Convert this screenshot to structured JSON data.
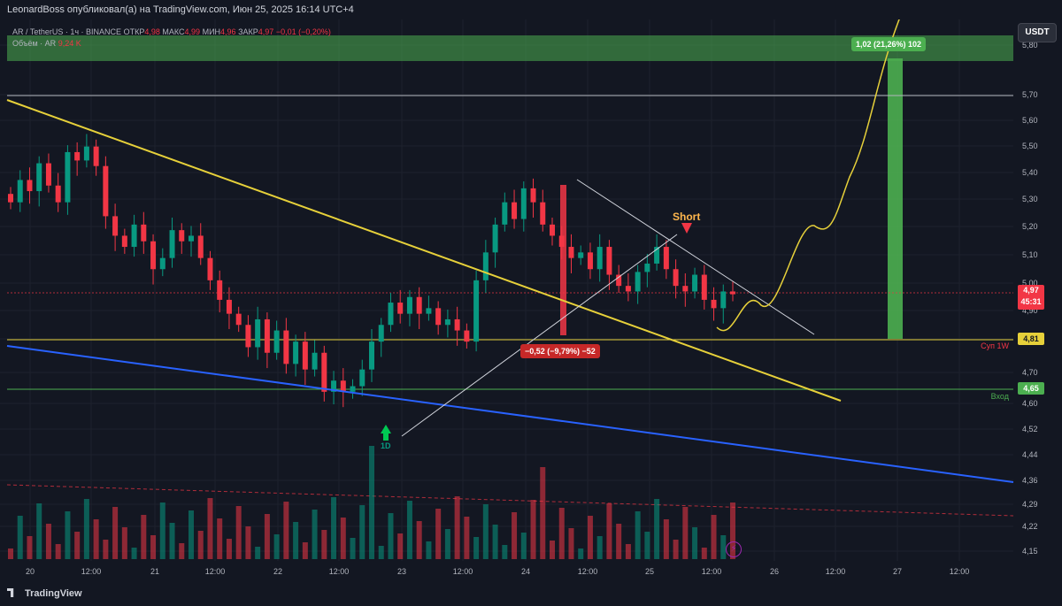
{
  "header": {
    "published": "LeonardBoss опубликовал(а) на TradingView.com, Июн 25, 2025 16:14 UTC+4"
  },
  "legend": {
    "symbol": "AR / TetherUS · 1ч · BINANCE",
    "open_label": "ОТКР",
    "open": "4,98",
    "high_label": "МАКС",
    "high": "4,99",
    "low_label": "МИН",
    "low": "4,96",
    "close_label": "ЗАКР",
    "close": "4,97",
    "change": "−0,01 (−0,20%)",
    "volume_label": "Объём · AR",
    "volume": "9,24 K"
  },
  "currency": "USDT",
  "price_axis": [
    "5,80",
    "5,70",
    "5,60",
    "5,50",
    "5,40",
    "5,30",
    "5,20",
    "5,10",
    "5,00",
    "4,90",
    "4,80",
    "4,70",
    "4,60",
    "4,52",
    "4,44",
    "4,36",
    "4,29",
    "4,22",
    "4,15"
  ],
  "time_axis": [
    "20",
    "12:00",
    "21",
    "12:00",
    "22",
    "12:00",
    "23",
    "12:00",
    "24",
    "12:00",
    "25",
    "12:00",
    "26",
    "12:00",
    "27",
    "12:00"
  ],
  "price_tags": {
    "current_price": "4,97",
    "countdown": "45:31",
    "support": "4,81",
    "support_label": "Суп 1W",
    "entry": "4,65",
    "entry_label": "Вход"
  },
  "annotations": {
    "target_measure": "1,02 (21,26%) 102",
    "drop_measure": "−0,52 (−9,79%) −52",
    "short_label": "Short",
    "d1_label": "1D",
    "flash_icon": "lightning-icon"
  },
  "footer": {
    "brand": "TradingView"
  },
  "colors": {
    "background": "#131722",
    "bull": "#089981",
    "bear": "#f23645",
    "yellow_trend": "#e6d03a",
    "blue_trend": "#2962ff",
    "target_zone": "#4caf50"
  },
  "chart_data": {
    "type": "candlestick",
    "symbol": "AR / TetherUS",
    "interval": "1h",
    "ylim": [
      4.15,
      5.85
    ],
    "x_categories": [
      "20",
      "12:00",
      "21",
      "12:00",
      "22",
      "12:00",
      "23",
      "12:00",
      "24",
      "12:00",
      "25",
      "12:00",
      "26",
      "12:00",
      "27",
      "12:00"
    ],
    "close_path": [
      5.3,
      5.38,
      5.34,
      5.44,
      5.36,
      5.3,
      5.48,
      5.45,
      5.5,
      5.43,
      5.25,
      5.18,
      5.14,
      5.22,
      5.16,
      5.06,
      5.1,
      5.2,
      5.16,
      5.18,
      5.1,
      5.02,
      4.95,
      4.9,
      4.86,
      4.78,
      4.88,
      4.76,
      4.84,
      4.72,
      4.8,
      4.7,
      4.76,
      4.62,
      4.66,
      4.62,
      4.64,
      4.7,
      4.8,
      4.86,
      4.94,
      4.9,
      4.96,
      4.9,
      4.92,
      4.86,
      4.88,
      4.84,
      4.8,
      5.02,
      5.12,
      5.22,
      5.3,
      5.24,
      5.35,
      5.3,
      5.22,
      5.18,
      5.14,
      5.1,
      5.12,
      5.06,
      5.14,
      5.04,
      5.0,
      4.98,
      5.05,
      5.08,
      5.14,
      5.06,
      5.0,
      4.98,
      5.04,
      4.95,
      4.92,
      4.98,
      4.97
    ],
    "horizontal_levels": [
      {
        "label": "",
        "value": 5.7
      },
      {
        "label": "Суп 1W",
        "value": 4.81
      },
      {
        "label": "Вход",
        "value": 4.65
      }
    ],
    "measurements": [
      {
        "label": "1,02 (21,26%) 102",
        "from": 4.81,
        "to": 5.83
      },
      {
        "label": "−0,52 (−9,79%) −52",
        "from": 5.34,
        "to": 4.82
      }
    ],
    "current_price": 4.97,
    "volume_unit": "AR",
    "current_volume": "9,24 K"
  }
}
